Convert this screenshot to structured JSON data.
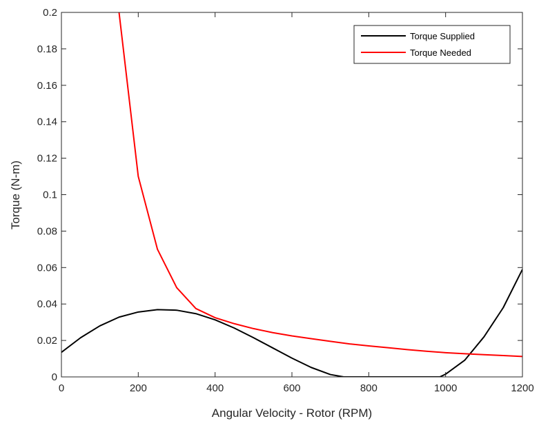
{
  "chart_data": {
    "type": "line",
    "title": "",
    "xlabel": "Angular Velocity - Rotor (RPM)",
    "ylabel": "Torque (N-m)",
    "xlim": [
      0,
      1200
    ],
    "ylim": [
      0,
      0.2
    ],
    "x_ticks": [
      0,
      200,
      400,
      600,
      800,
      1000,
      1200
    ],
    "x_tick_labels": [
      "0",
      "200",
      "400",
      "600",
      "800",
      "1000",
      "1200"
    ],
    "y_ticks": [
      0,
      0.02,
      0.04,
      0.06,
      0.08,
      0.1,
      0.12,
      0.14,
      0.16,
      0.18,
      0.2
    ],
    "y_tick_labels": [
      "0",
      "0.02",
      "0.04",
      "0.06",
      "0.08",
      "0.1",
      "0.12",
      "0.14",
      "0.16",
      "0.18",
      "0.2"
    ],
    "grid": false,
    "legend_position": "top-right",
    "series": [
      {
        "name": "Torque Supplied",
        "color": "#000000",
        "x": [
          0,
          50,
          100,
          150,
          200,
          250,
          300,
          350,
          400,
          450,
          500,
          550,
          600,
          650,
          700,
          735,
          985,
          1000,
          1050,
          1100,
          1150,
          1200
        ],
        "y": [
          0.0135,
          0.0215,
          0.028,
          0.0328,
          0.0356,
          0.0369,
          0.0366,
          0.0347,
          0.0313,
          0.0268,
          0.0215,
          0.0159,
          0.0103,
          0.0052,
          0.0013,
          0.0,
          0.0,
          0.0015,
          0.0092,
          0.022,
          0.038,
          0.059
        ]
      },
      {
        "name": "Torque Needed",
        "color": "#ff0000",
        "x": [
          150,
          200,
          250,
          300,
          350,
          400,
          450,
          500,
          550,
          600,
          650,
          700,
          750,
          800,
          850,
          900,
          950,
          1000,
          1050,
          1100,
          1150,
          1200
        ],
        "y": [
          0.2,
          0.11,
          0.07,
          0.049,
          0.0375,
          0.0325,
          0.0292,
          0.0265,
          0.0243,
          0.0225,
          0.021,
          0.0195,
          0.0181,
          0.017,
          0.016,
          0.015,
          0.0141,
          0.0133,
          0.0127,
          0.0122,
          0.0117,
          0.0112
        ]
      }
    ]
  }
}
